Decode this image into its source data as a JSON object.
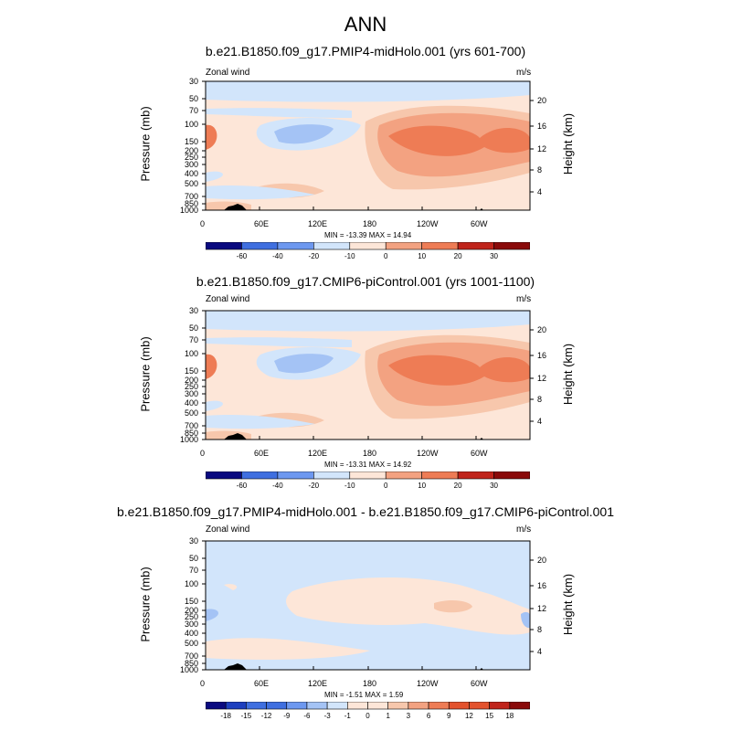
{
  "main_title": "ANN",
  "colors": {
    "palette": [
      "#0a0a80",
      "#1d3fbf",
      "#3f6fe0",
      "#6d98f0",
      "#a4c3f5",
      "#d2e5fb",
      "#fde6d8",
      "#f7c7ac",
      "#f3a281",
      "#ee7c55",
      "#e3522d",
      "#c0241b",
      "#8a0a0a"
    ],
    "background_band": "#d2e5fb"
  },
  "chart_data": [
    {
      "type": "heatmap",
      "title": "b.e21.B1850.f09_g17.PMIP4-midHolo.001 (yrs 601-700)",
      "left_string": "Zonal wind",
      "right_string": "m/s",
      "ylabel": "Pressure (mb)",
      "ylabel_right": "Height (km)",
      "x_ticks": [
        "0",
        "60E",
        "120E",
        "180",
        "120W",
        "60W"
      ],
      "y_ticks": [
        "30",
        "50",
        "70",
        "100",
        "150",
        "200",
        "250",
        "300",
        "400",
        "500",
        "700",
        "850",
        "1000"
      ],
      "y_right_ticks": [
        "20",
        "16",
        "12",
        "8",
        "4"
      ],
      "stats": "MIN = -13.39  MAX =  14.94",
      "colorbar_labels": [
        "-60",
        "-40",
        "-20",
        "-10",
        "0",
        "10",
        "20",
        "30"
      ]
    },
    {
      "type": "heatmap",
      "title": "b.e21.B1850.f09_g17.CMIP6-piControl.001 (yrs 1001-1100)",
      "left_string": "Zonal wind",
      "right_string": "m/s",
      "ylabel": "Pressure (mb)",
      "ylabel_right": "Height (km)",
      "x_ticks": [
        "0",
        "60E",
        "120E",
        "180",
        "120W",
        "60W"
      ],
      "y_ticks": [
        "30",
        "50",
        "70",
        "100",
        "150",
        "200",
        "250",
        "300",
        "400",
        "500",
        "700",
        "850",
        "1000"
      ],
      "y_right_ticks": [
        "20",
        "16",
        "12",
        "8",
        "4"
      ],
      "stats": "MIN = -13.31  MAX =  14.92",
      "colorbar_labels": [
        "-60",
        "-40",
        "-20",
        "-10",
        "0",
        "10",
        "20",
        "30"
      ]
    },
    {
      "type": "heatmap",
      "title": "b.e21.B1850.f09_g17.PMIP4-midHolo.001 - b.e21.B1850.f09_g17.CMIP6-piControl.001",
      "left_string": "Zonal wind",
      "right_string": "m/s",
      "ylabel": "Pressure (mb)",
      "ylabel_right": "Height (km)",
      "x_ticks": [
        "0",
        "60E",
        "120E",
        "180",
        "120W",
        "60W"
      ],
      "y_ticks": [
        "30",
        "50",
        "70",
        "100",
        "150",
        "200",
        "250",
        "300",
        "400",
        "500",
        "700",
        "850",
        "1000"
      ],
      "y_right_ticks": [
        "20",
        "16",
        "12",
        "8",
        "4"
      ],
      "stats": "MIN =  -1.51  MAX =   1.59",
      "colorbar_labels": [
        "-18",
        "-15",
        "-12",
        "-9",
        "-6",
        "-3",
        "-1",
        "0",
        "1",
        "3",
        "6",
        "9",
        "12",
        "15",
        "18"
      ]
    }
  ]
}
